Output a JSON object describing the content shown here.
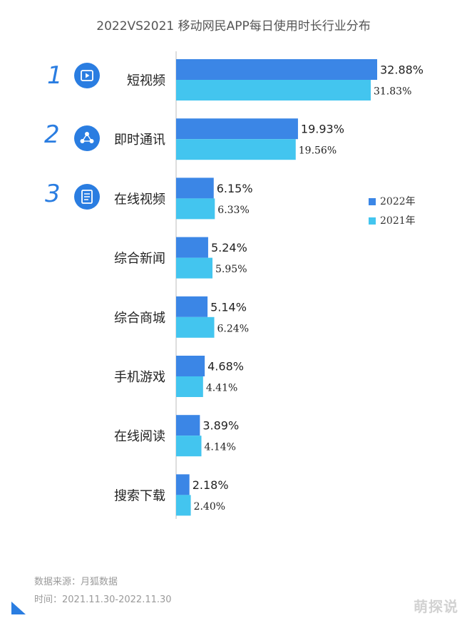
{
  "title": "2022VS2021 移动网民APP每日使用时长行业分布",
  "ranks": [
    "1",
    "2",
    "3"
  ],
  "icons": [
    "video-play-icon",
    "people-network-icon",
    "document-list-icon"
  ],
  "legend": [
    {
      "label": "2022年",
      "color": "#3b86e6"
    },
    {
      "label": "2021年",
      "color": "#43c5ef"
    }
  ],
  "footer": {
    "source": "数据来源：月狐数据",
    "period": "时间：2021.11.30-2022.11.30"
  },
  "watermark": "萌探说",
  "chart_data": {
    "type": "bar",
    "orientation": "horizontal",
    "categories": [
      "短视频",
      "即时通讯",
      "在线视频",
      "综合新闻",
      "综合商城",
      "手机游戏",
      "在线阅读",
      "搜索下载"
    ],
    "series": [
      {
        "name": "2022年",
        "color": "#3b86e6",
        "values": [
          32.88,
          19.93,
          6.15,
          5.24,
          5.14,
          4.68,
          3.89,
          2.18
        ],
        "labels": [
          "32.88%",
          "19.93%",
          "6.15%",
          "5.24%",
          "5.14%",
          "4.68%",
          "3.89%",
          "2.18%"
        ]
      },
      {
        "name": "2021年",
        "color": "#43c5ef",
        "values": [
          31.83,
          19.56,
          6.33,
          5.95,
          6.24,
          4.41,
          4.14,
          2.4
        ],
        "labels": [
          "31.83%",
          "19.56%",
          "6.33%",
          "5.95%",
          "6.24%",
          "4.41%",
          "4.14%",
          "2.40%"
        ]
      }
    ],
    "grid": false,
    "legend_position": "right"
  }
}
